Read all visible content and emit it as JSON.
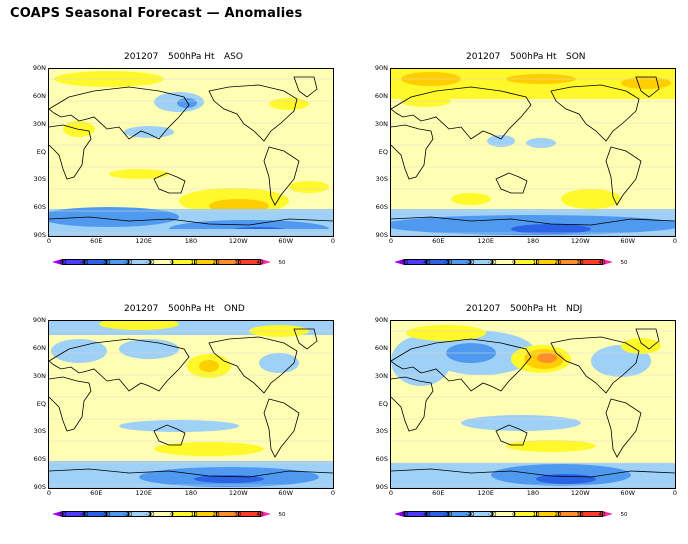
{
  "title": "COAPS Seasonal Forecast — Anomalies",
  "panels": [
    {
      "date": "201207",
      "variable": "500hPa Ht",
      "season": "ASO"
    },
    {
      "date": "201207",
      "variable": "500hPa Ht",
      "season": "SON"
    },
    {
      "date": "201207",
      "variable": "500hPa Ht",
      "season": "OND"
    },
    {
      "date": "201207",
      "variable": "500hPa Ht",
      "season": "NDJ"
    }
  ],
  "lat_labels": [
    "90N",
    "60N",
    "30N",
    "EQ",
    "30S",
    "60S",
    "90S"
  ],
  "lon_labels": [
    "0",
    "60E",
    "120E",
    "180",
    "120W",
    "60W",
    "0"
  ],
  "colorbar": {
    "ticks": [
      "-50",
      "-40",
      "-30",
      "-20",
      "-10",
      "0",
      "10",
      "20",
      "30",
      "40",
      "50"
    ],
    "colors": [
      "#9e00ff",
      "#4b3cff",
      "#2a63e6",
      "#4f9af0",
      "#9fd0f5",
      "#ffffb4",
      "#fff82a",
      "#ffce00",
      "#ff8e2a",
      "#ff3c2a",
      "#ff2aa0"
    ]
  },
  "chart_data": {
    "type": "heatmap",
    "units": "500hPa height anomaly",
    "maps": [
      {
        "season": "ASO",
        "features": [
          {
            "region": "North Pacific",
            "anomaly": -20
          },
          {
            "region": "Southern Ocean 60S",
            "anomaly": -20
          },
          {
            "region": "South Pacific 40S",
            "anomaly": 20
          },
          {
            "region": "Arctic",
            "anomaly": 10
          }
        ]
      },
      {
        "season": "SON",
        "features": [
          {
            "region": "Arctic / high latitudes",
            "anomaly": 20
          },
          {
            "region": "South Pacific 40S",
            "anomaly": 10
          },
          {
            "region": "Southern Ocean 60S",
            "anomaly": -30
          }
        ]
      },
      {
        "season": "OND",
        "features": [
          {
            "region": "North Pacific",
            "anomaly": 10
          },
          {
            "region": "South Pacific 40S",
            "anomaly": 10
          },
          {
            "region": "Southern Ocean 60S",
            "anomaly": -30
          }
        ]
      },
      {
        "season": "NDJ",
        "features": [
          {
            "region": "North Pacific",
            "anomaly": 30
          },
          {
            "region": "Eurasia",
            "anomaly": -20
          },
          {
            "region": "South Pacific 40S",
            "anomaly": 10
          },
          {
            "region": "Southern Ocean 60S",
            "anomaly": -30
          }
        ]
      }
    ]
  }
}
